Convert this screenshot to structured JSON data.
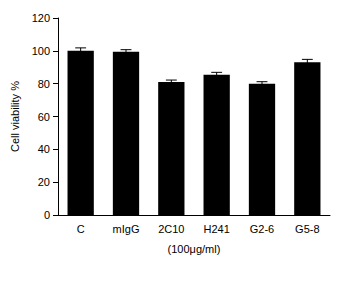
{
  "chart_data": {
    "type": "bar",
    "categories": [
      "C",
      "mIgG",
      "2C10",
      "H241",
      "G2-6",
      "G5-8"
    ],
    "values": [
      100,
      99.5,
      81,
      85.5,
      80,
      93
    ],
    "errors": [
      1.8,
      1.2,
      1.2,
      1.4,
      1.2,
      1.8
    ],
    "color": "#000000",
    "xlabel": "(100μg/ml)",
    "ylabel": "Cell viability %",
    "ylim": [
      0,
      120
    ],
    "yticks": [
      0,
      20,
      40,
      60,
      80,
      100,
      120
    ],
    "grid": false
  }
}
